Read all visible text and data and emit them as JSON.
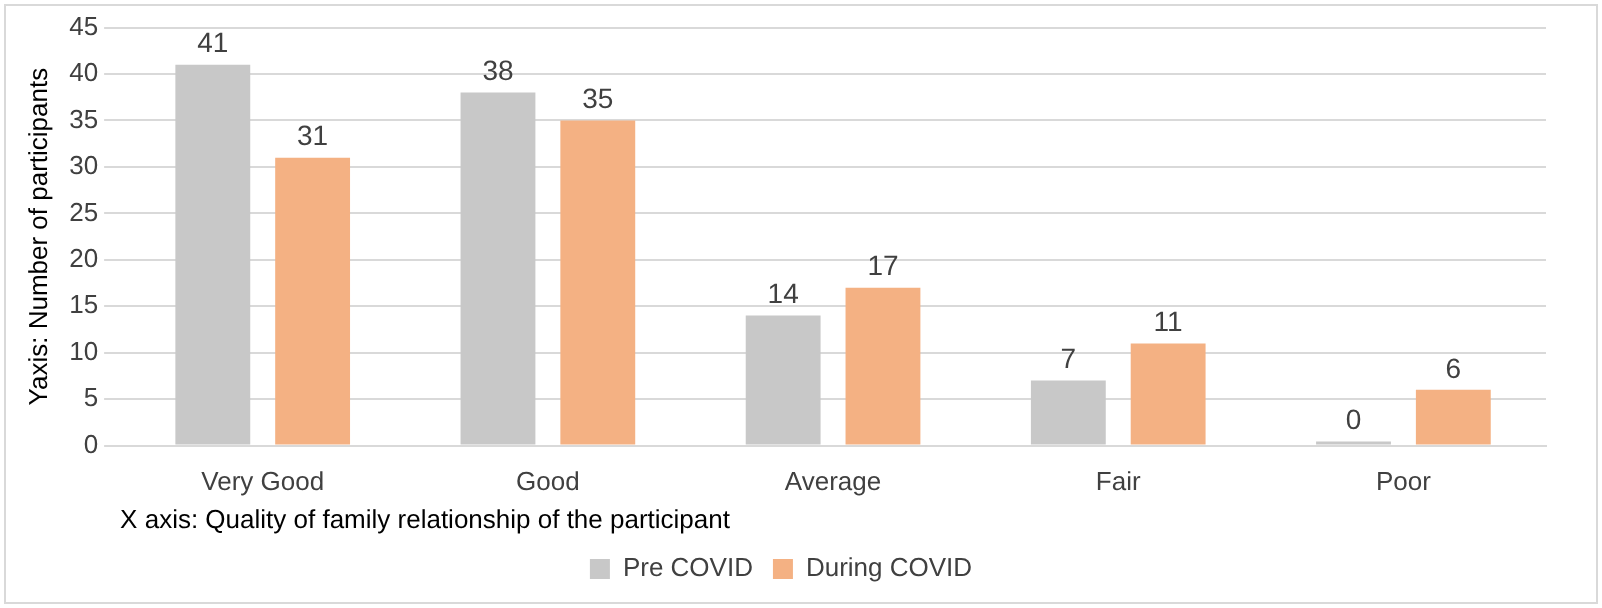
{
  "chart_data": {
    "type": "bar",
    "ylabel": "Yaxis: Number of participants",
    "xlabel": "X axis: Quality of family relationship of the participant",
    "categories": [
      "Very Good",
      "Good",
      "Average",
      "Fair",
      "Poor"
    ],
    "series": [
      {
        "name": "Pre COVID",
        "color": "#c8c8c8",
        "values": [
          41,
          38,
          14,
          7,
          0
        ]
      },
      {
        "name": "During COVID",
        "color": "#f4b183",
        "values": [
          31,
          35,
          17,
          11,
          6
        ]
      }
    ],
    "ylim": [
      0,
      45
    ],
    "yticks": [
      0,
      5,
      10,
      15,
      20,
      25,
      30,
      35,
      40,
      45
    ],
    "grid": "y",
    "legend": "bottom",
    "data_labels": true
  }
}
